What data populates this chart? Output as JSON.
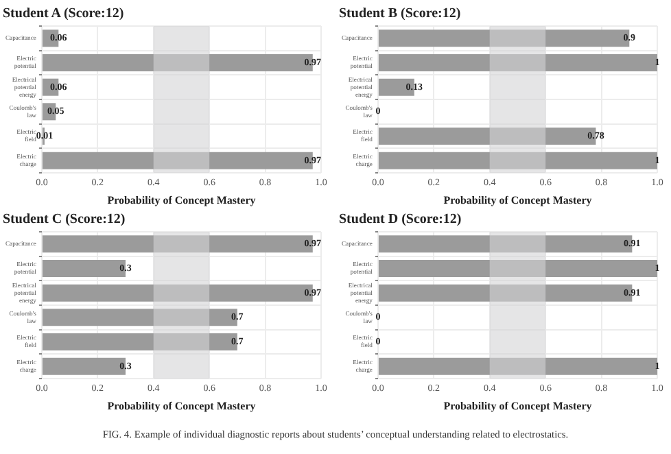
{
  "chart_data": [
    {
      "type": "bar",
      "orientation": "horizontal",
      "title": "Student A (Score:12)",
      "xlabel": "Probability of Concept Mastery",
      "categories": [
        "Capacitance",
        "Electric potential",
        "Electrical potential energy",
        "Coulomb's law",
        "Electric field",
        "Electric charge"
      ],
      "values": [
        0.06,
        0.97,
        0.06,
        0.05,
        0.01,
        0.97
      ],
      "color": "#9b9b9b",
      "xlim": [
        0,
        1
      ],
      "xticks": [
        {
          "value": 0,
          "label": "0.0"
        },
        {
          "value": 0.2,
          "label": "0.2"
        },
        {
          "value": 0.4,
          "label": "0.4"
        },
        {
          "value": 0.6,
          "label": "0.6"
        },
        {
          "value": 0.8,
          "label": "0.8"
        },
        {
          "value": 1,
          "label": "1.0"
        }
      ],
      "bands": [
        {
          "axis": "x",
          "from": 0.4,
          "to": 0.6,
          "color": "#d4d4d6"
        }
      ],
      "data_labels": true,
      "grid": true
    },
    {
      "type": "bar",
      "orientation": "horizontal",
      "title": "Student B (Score:12)",
      "xlabel": "Probability of Concept Mastery",
      "categories": [
        "Capacitance",
        "Electric potential",
        "Electrical potential energy",
        "Coulomb's law",
        "Electric field",
        "Electric charge"
      ],
      "values": [
        0.9,
        1,
        0.13,
        0,
        0.78,
        1
      ],
      "color": "#9b9b9b",
      "xlim": [
        0,
        1
      ],
      "xticks": [
        {
          "value": 0,
          "label": "0.0"
        },
        {
          "value": 0.2,
          "label": "0.2"
        },
        {
          "value": 0.4,
          "label": "0.4"
        },
        {
          "value": 0.6,
          "label": "0.6"
        },
        {
          "value": 0.8,
          "label": "0.8"
        },
        {
          "value": 1,
          "label": "1.0"
        }
      ],
      "bands": [
        {
          "axis": "x",
          "from": 0.4,
          "to": 0.6,
          "color": "#d4d4d6"
        }
      ],
      "data_labels": true,
      "grid": true
    },
    {
      "type": "bar",
      "orientation": "horizontal",
      "title": "Student C (Score:12)",
      "xlabel": "Probability of Concept Mastery",
      "categories": [
        "Capacitance",
        "Electric potential",
        "Electrical potential energy",
        "Coulomb's law",
        "Electric field",
        "Electric charge"
      ],
      "values": [
        0.97,
        0.3,
        0.97,
        0.7,
        0.7,
        0.3
      ],
      "color": "#9b9b9b",
      "xlim": [
        0,
        1
      ],
      "xticks": [
        {
          "value": 0,
          "label": "0.0"
        },
        {
          "value": 0.2,
          "label": "0.2"
        },
        {
          "value": 0.4,
          "label": "0.4"
        },
        {
          "value": 0.6,
          "label": "0.6"
        },
        {
          "value": 0.8,
          "label": "0.8"
        },
        {
          "value": 1,
          "label": "1.0"
        }
      ],
      "bands": [
        {
          "axis": "x",
          "from": 0.4,
          "to": 0.6,
          "color": "#d4d4d6"
        }
      ],
      "data_labels": true,
      "grid": true
    },
    {
      "type": "bar",
      "orientation": "horizontal",
      "title": "Student D (Score:12)",
      "xlabel": "Probability of Concept Mastery",
      "categories": [
        "Capacitance",
        "Electric potential",
        "Electrical potential energy",
        "Coulomb's law",
        "Electric field",
        "Electric charge"
      ],
      "values": [
        0.91,
        1,
        0.91,
        0,
        0,
        1
      ],
      "color": "#9b9b9b",
      "xlim": [
        0,
        1
      ],
      "xticks": [
        {
          "value": 0,
          "label": "0.0"
        },
        {
          "value": 0.2,
          "label": "0.2"
        },
        {
          "value": 0.4,
          "label": "0.4"
        },
        {
          "value": 0.6,
          "label": "0.6"
        },
        {
          "value": 0.8,
          "label": "0.8"
        },
        {
          "value": 1,
          "label": "1.0"
        }
      ],
      "bands": [
        {
          "axis": "x",
          "from": 0.4,
          "to": 0.6,
          "color": "#d4d4d6"
        }
      ],
      "data_labels": true,
      "grid": true,
      "annotations": [
        "FIG. 4.   Example of individual diagnostic reports about students’ conceptual understanding related to electrostatics."
      ]
    }
  ]
}
